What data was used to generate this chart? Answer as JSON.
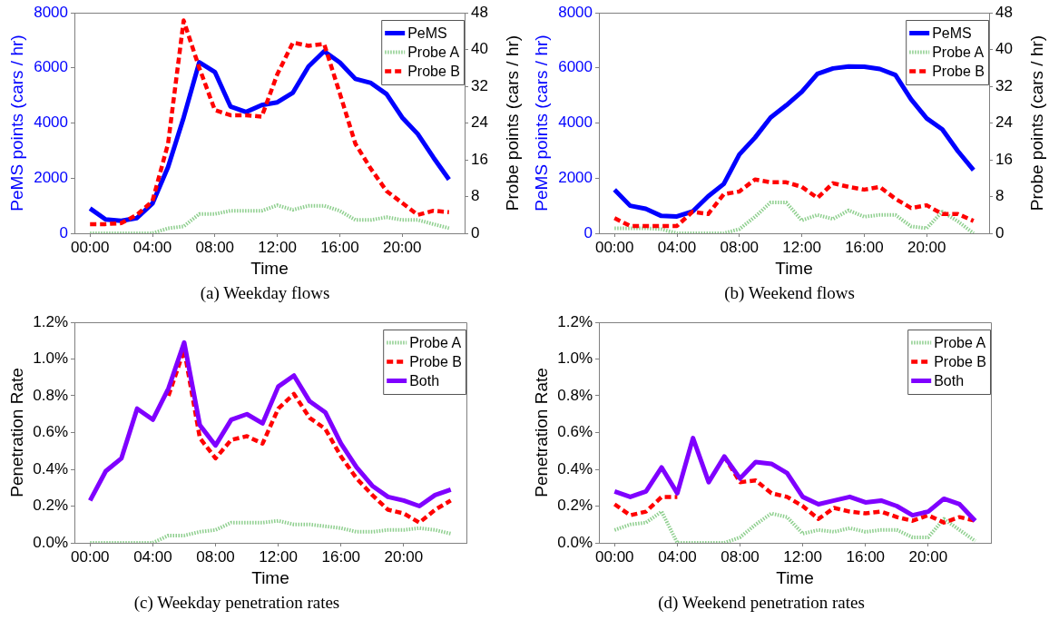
{
  "chart_data": [
    {
      "type": "line",
      "title": "(a) Weekday flows",
      "xlabel": "Time",
      "ylabel": "PeMS points (cars / hr)",
      "y2label": "Probe points (cars / hr)",
      "x": [
        0,
        1,
        2,
        3,
        4,
        5,
        6,
        7,
        8,
        9,
        10,
        11,
        12,
        13,
        14,
        15,
        16,
        17,
        18,
        19,
        20,
        21,
        22,
        23
      ],
      "xlim": [
        -1,
        24
      ],
      "xticks": [
        {
          "value": 0,
          "label": "00:00"
        },
        {
          "value": 4,
          "label": "04:00"
        },
        {
          "value": 8,
          "label": "08:00"
        },
        {
          "value": 12,
          "label": "12:00"
        },
        {
          "value": 16,
          "label": "16:00"
        },
        {
          "value": 20,
          "label": "20:00"
        }
      ],
      "ylim": [
        0,
        8000
      ],
      "yticks": [
        0,
        2000,
        4000,
        6000,
        8000
      ],
      "y2lim": [
        0,
        48
      ],
      "y2ticks": [
        0,
        8,
        16,
        24,
        32,
        40,
        48
      ],
      "grid": false,
      "legend": "top right",
      "marker": "none",
      "series": [
        {
          "name": "PeMS",
          "color": "#0000ff",
          "line_style": "solid",
          "values": [
            900,
            500,
            450,
            550,
            1080,
            2400,
            4200,
            6200,
            5850,
            4600,
            4400,
            4650,
            4750,
            5100,
            6050,
            6600,
            6200,
            5600,
            5450,
            5050,
            4200,
            3600,
            2750,
            1950
          ]
        },
        {
          "name": "Probe A",
          "color": "#8fcf8f",
          "line_style": "dotted",
          "axis": "y2",
          "values": [
            0,
            0,
            0,
            0,
            0,
            1.1,
            1.5,
            4.2,
            4.2,
            4.9,
            4.9,
            4.9,
            6.1,
            5.1,
            6.0,
            6.0,
            4.9,
            2.9,
            2.9,
            3.5,
            2.9,
            2.9,
            2.0,
            1.1
          ]
        },
        {
          "name": "Probe B",
          "color": "#ff0000",
          "line_style": "dashed",
          "axis": "y2",
          "values": [
            2.0,
            2.0,
            2.2,
            4,
            7,
            19.5,
            46.3,
            36,
            26.8,
            25.7,
            25.7,
            25.4,
            34.6,
            41.5,
            40.8,
            41.2,
            30.5,
            19.5,
            14,
            9.2,
            6.6,
            4,
            4.9,
            4.6
          ]
        }
      ]
    },
    {
      "type": "line",
      "title": "(b) Weekend flows",
      "xlabel": "Time",
      "ylabel": "PeMS points (cars / hr)",
      "y2label": "Probe points (cars / hr)",
      "x": [
        0,
        1,
        2,
        3,
        4,
        5,
        6,
        7,
        8,
        9,
        10,
        11,
        12,
        13,
        14,
        15,
        16,
        17,
        18,
        19,
        20,
        21,
        22,
        23
      ],
      "xlim": [
        -1,
        24
      ],
      "xticks": [
        {
          "value": 0,
          "label": "00:00"
        },
        {
          "value": 4,
          "label": "04:00"
        },
        {
          "value": 8,
          "label": "08:00"
        },
        {
          "value": 12,
          "label": "12:00"
        },
        {
          "value": 16,
          "label": "16:00"
        },
        {
          "value": 20,
          "label": "20:00"
        }
      ],
      "ylim": [
        0,
        8000
      ],
      "yticks": [
        0,
        2000,
        4000,
        6000,
        8000
      ],
      "y2lim": [
        0,
        48
      ],
      "y2ticks": [
        0,
        8,
        16,
        24,
        32,
        40,
        48
      ],
      "grid": false,
      "legend": "top right",
      "marker": "none",
      "series": [
        {
          "name": "PeMS",
          "color": "#0000ff",
          "line_style": "solid",
          "values": [
            1580,
            1000,
            890,
            630,
            610,
            790,
            1340,
            1790,
            2860,
            3470,
            4200,
            4640,
            5130,
            5780,
            5980,
            6050,
            6040,
            5960,
            5740,
            4860,
            4170,
            3770,
            2980,
            2290
          ]
        },
        {
          "name": "Probe A",
          "color": "#8fcf8f",
          "line_style": "dotted",
          "axis": "y2",
          "values": [
            1.1,
            1.1,
            1.1,
            0.9,
            0,
            0,
            0,
            0,
            0.9,
            3.6,
            6.7,
            6.7,
            2.8,
            4.0,
            3.1,
            5.0,
            3.6,
            4.0,
            4.0,
            1.5,
            1.1,
            4.7,
            2.6,
            0
          ]
        },
        {
          "name": "Probe B",
          "color": "#ff0000",
          "line_style": "dashed",
          "axis": "y2",
          "values": [
            3.3,
            1.6,
            1.6,
            1.6,
            1.6,
            4.7,
            4.2,
            8.5,
            9.1,
            11.7,
            11.1,
            11.1,
            10.1,
            7.7,
            10.9,
            10.1,
            9.5,
            10.1,
            7.5,
            5.5,
            6.1,
            4.2,
            4.2,
            2.7
          ]
        }
      ]
    },
    {
      "type": "line",
      "title": "(c) Weekday penetration rates",
      "xlabel": "Time",
      "ylabel": "Penetration Rate",
      "x": [
        0,
        1,
        2,
        3,
        4,
        5,
        6,
        7,
        8,
        9,
        10,
        11,
        12,
        13,
        14,
        15,
        16,
        17,
        18,
        19,
        20,
        21,
        22,
        23
      ],
      "xlim": [
        -1,
        24
      ],
      "xticks": [
        {
          "value": 0,
          "label": "00:00"
        },
        {
          "value": 4,
          "label": "04:00"
        },
        {
          "value": 8,
          "label": "08:00"
        },
        {
          "value": 12,
          "label": "12:00"
        },
        {
          "value": 16,
          "label": "16:00"
        },
        {
          "value": 20,
          "label": "20:00"
        }
      ],
      "ylim": [
        0,
        1.2
      ],
      "yticks": [
        {
          "value": 0,
          "label": "0.0%"
        },
        {
          "value": 0.2,
          "label": "0.2%"
        },
        {
          "value": 0.4,
          "label": "0.4%"
        },
        {
          "value": 0.6,
          "label": "0.6%"
        },
        {
          "value": 0.8,
          "label": "0.8%"
        },
        {
          "value": 1.0,
          "label": "1.0%"
        },
        {
          "value": 1.2,
          "label": "1.2%"
        }
      ],
      "grid": false,
      "legend": "top right",
      "marker": "none",
      "series": [
        {
          "name": "Probe A",
          "color": "#8fcf8f",
          "line_style": "dotted",
          "values": [
            0,
            0,
            0,
            0,
            0,
            0.04,
            0.04,
            0.06,
            0.07,
            0.11,
            0.11,
            0.11,
            0.12,
            0.1,
            0.1,
            0.09,
            0.08,
            0.06,
            0.06,
            0.07,
            0.07,
            0.08,
            0.07,
            0.05
          ]
        },
        {
          "name": "Probe B",
          "color": "#ff0000",
          "line_style": "dashed",
          "values": [
            null,
            null,
            null,
            null,
            null,
            0.8,
            1.05,
            0.57,
            0.46,
            0.56,
            0.58,
            0.54,
            0.73,
            0.81,
            0.68,
            0.62,
            0.47,
            0.35,
            0.26,
            0.18,
            0.16,
            0.11,
            0.18,
            0.23
          ]
        },
        {
          "name": "Both",
          "color": "#7f00ff",
          "line_style": "solid",
          "values": [
            0.23,
            0.39,
            0.46,
            0.73,
            0.67,
            0.84,
            1.09,
            0.64,
            0.53,
            0.67,
            0.7,
            0.65,
            0.85,
            0.91,
            0.77,
            0.71,
            0.54,
            0.41,
            0.31,
            0.25,
            0.23,
            0.2,
            0.26,
            0.29
          ]
        }
      ]
    },
    {
      "type": "line",
      "title": "(d) Weekend penetration rates",
      "xlabel": "Time",
      "ylabel": "Penetration Rate",
      "x": [
        0,
        1,
        2,
        3,
        4,
        5,
        6,
        7,
        8,
        9,
        10,
        11,
        12,
        13,
        14,
        15,
        16,
        17,
        18,
        19,
        20,
        21,
        22,
        23
      ],
      "xlim": [
        -1,
        24
      ],
      "xticks": [
        {
          "value": 0,
          "label": "00:00"
        },
        {
          "value": 4,
          "label": "04:00"
        },
        {
          "value": 8,
          "label": "08:00"
        },
        {
          "value": 12,
          "label": "12:00"
        },
        {
          "value": 16,
          "label": "16:00"
        },
        {
          "value": 20,
          "label": "20:00"
        }
      ],
      "ylim": [
        0,
        1.2
      ],
      "yticks": [
        {
          "value": 0,
          "label": "0.0%"
        },
        {
          "value": 0.2,
          "label": "0.2%"
        },
        {
          "value": 0.4,
          "label": "0.4%"
        },
        {
          "value": 0.6,
          "label": "0.6%"
        },
        {
          "value": 0.8,
          "label": "0.8%"
        },
        {
          "value": 1.0,
          "label": "1.0%"
        },
        {
          "value": 1.2,
          "label": "1.2%"
        }
      ],
      "grid": false,
      "legend": "top right",
      "marker": "none",
      "series": [
        {
          "name": "Probe A",
          "color": "#8fcf8f",
          "line_style": "dotted",
          "values": [
            0.07,
            0.1,
            0.11,
            0.17,
            0,
            0,
            0,
            0,
            0.03,
            0.1,
            0.16,
            0.14,
            0.05,
            0.07,
            0.06,
            0.08,
            0.06,
            0.07,
            0.07,
            0.03,
            0.03,
            0.13,
            0.07,
            0.01
          ]
        },
        {
          "name": "Probe B",
          "color": "#ff0000",
          "line_style": "dashed",
          "values": [
            0.21,
            0.15,
            0.17,
            0.25,
            0.25,
            null,
            null,
            0.47,
            0.33,
            0.34,
            0.27,
            0.25,
            0.2,
            0.13,
            0.19,
            0.17,
            0.16,
            0.17,
            0.14,
            0.12,
            0.15,
            0.11,
            0.14,
            0.12
          ]
        },
        {
          "name": "Both",
          "color": "#7f00ff",
          "line_style": "solid",
          "values": [
            0.28,
            0.25,
            0.28,
            0.41,
            0.27,
            0.57,
            0.33,
            0.47,
            0.35,
            0.44,
            0.43,
            0.38,
            0.25,
            0.21,
            0.23,
            0.25,
            0.22,
            0.23,
            0.2,
            0.15,
            0.17,
            0.24,
            0.21,
            0.12
          ]
        }
      ]
    }
  ]
}
